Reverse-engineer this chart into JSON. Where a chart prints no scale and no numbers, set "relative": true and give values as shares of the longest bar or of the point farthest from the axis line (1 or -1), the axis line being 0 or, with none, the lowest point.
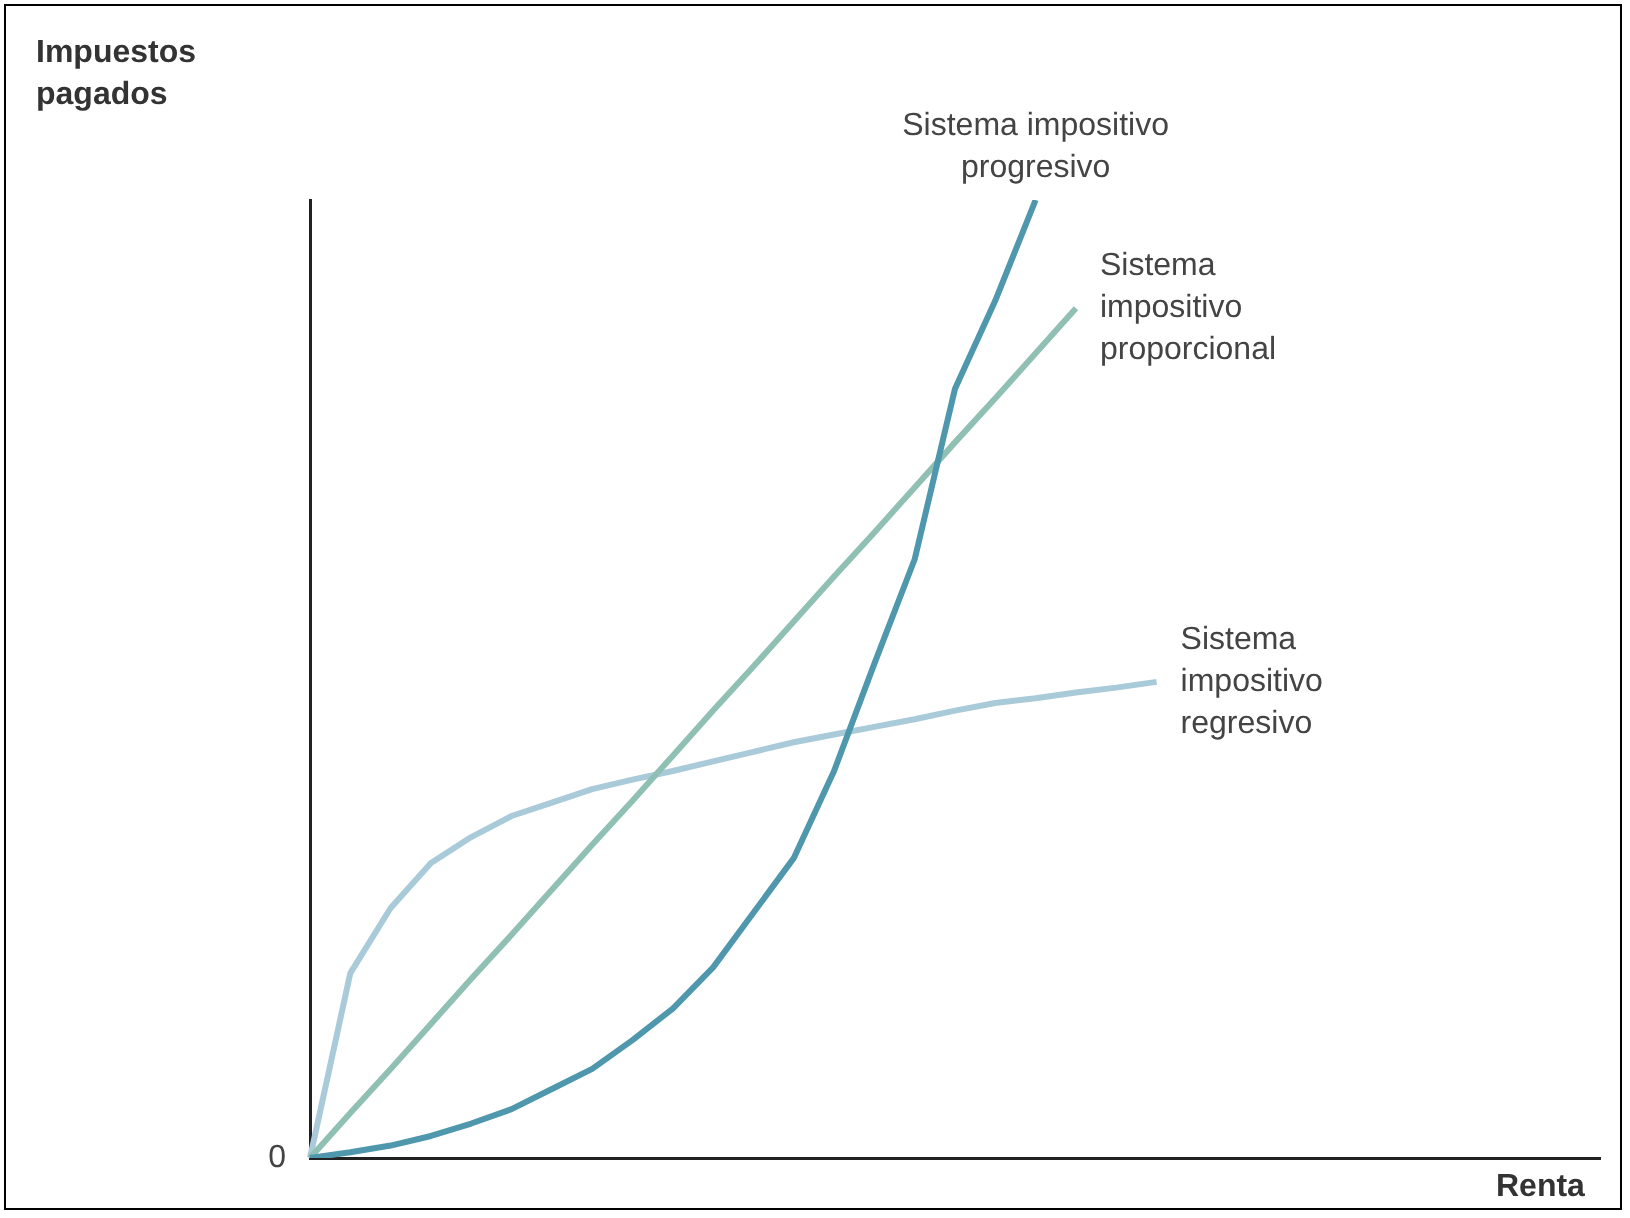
{
  "chart_data": {
    "type": "line",
    "relative": true,
    "xlabel": "Renta",
    "ylabel": "Impuestos pagados",
    "grid": false,
    "legend": false,
    "marker": "none",
    "annotations": [
      "0"
    ],
    "categories": [
      null,
      null,
      null,
      null,
      null,
      null,
      null,
      null,
      null,
      null,
      null,
      null,
      null,
      null,
      null,
      null,
      null,
      null,
      null,
      null,
      null,
      null,
      null,
      null,
      null,
      null,
      null,
      null,
      null,
      null,
      null,
      null,
      null
    ],
    "series": [
      {
        "name": "Sistema impositivo progresivo",
        "color": "#4f97ad",
        "values": [
          0,
          0.006,
          0.013,
          0.023,
          0.036,
          0.051,
          0.072,
          0.093,
          0.123,
          0.156,
          0.199,
          0.256,
          0.313,
          0.404,
          0.516,
          0.625,
          0.803,
          0.895,
          1,
          null,
          null,
          null,
          null,
          null,
          null,
          null,
          null,
          null,
          null,
          null,
          null,
          null,
          null
        ]
      },
      {
        "name": "Sistema impositivo proporcional",
        "color": "#8fc0b3",
        "values": [
          0,
          0.047,
          0.093,
          0.14,
          0.187,
          0.233,
          0.28,
          0.327,
          0.373,
          0.42,
          0.467,
          0.513,
          0.56,
          0.607,
          0.653,
          0.7,
          0.747,
          0.793,
          0.84,
          0.887,
          null,
          null,
          null,
          null,
          null,
          null,
          null,
          null,
          null,
          null,
          null,
          null,
          null
        ]
      },
      {
        "name": "Sistema impositivo regresivo",
        "color": "#a9cad9",
        "values": [
          0,
          0.193,
          0.261,
          0.308,
          0.335,
          0.357,
          0.371,
          0.385,
          0.395,
          0.404,
          0.414,
          0.424,
          0.434,
          0.442,
          0.45,
          0.458,
          0.467,
          0.475,
          0.48,
          0.486,
          0.491,
          0.497,
          null,
          null,
          null,
          null,
          null,
          null,
          null,
          null,
          null,
          null,
          null
        ]
      }
    ]
  }
}
